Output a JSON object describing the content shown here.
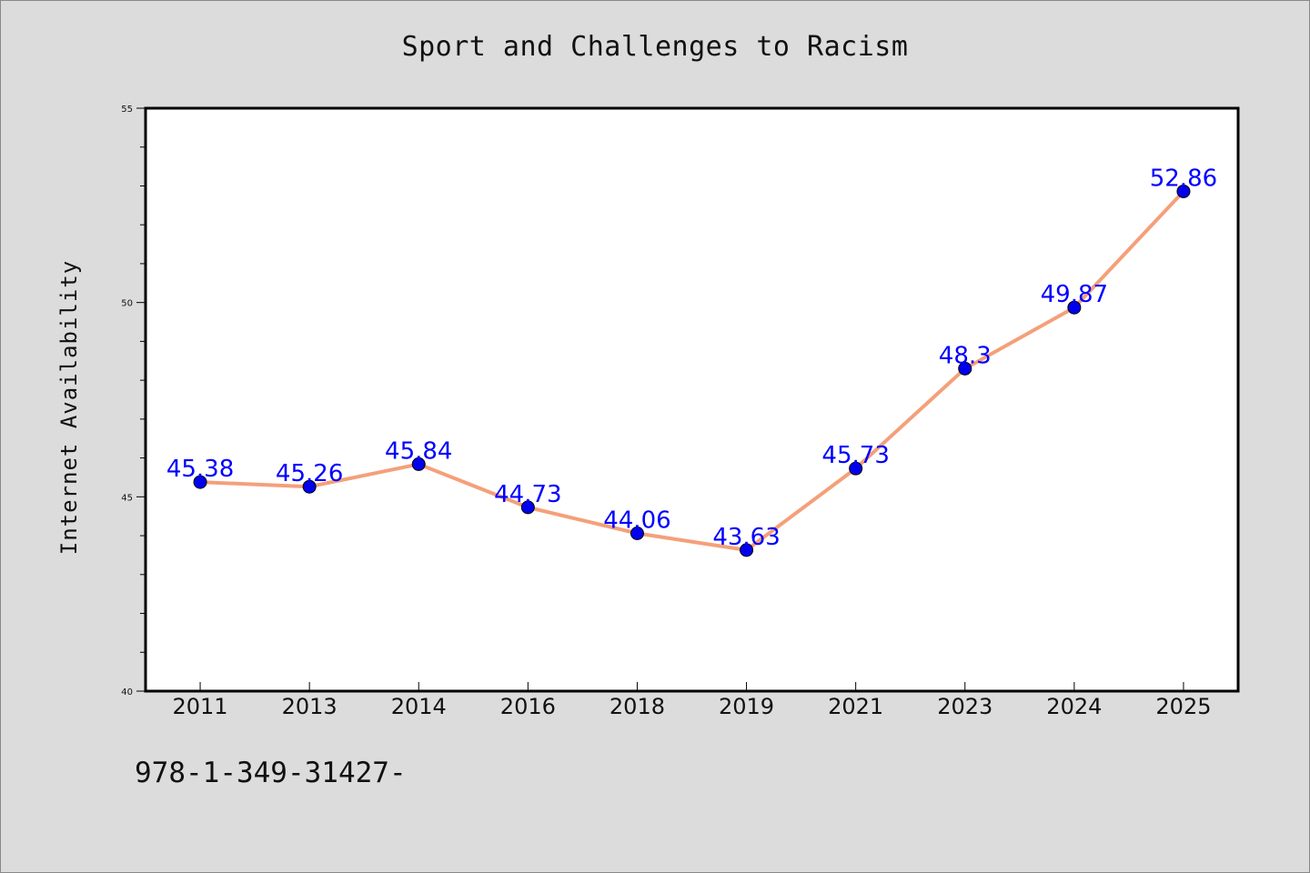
{
  "chart_data": {
    "type": "line",
    "title": "Sport and Challenges to Racism",
    "xlabel": "",
    "ylabel": "Internet Availability",
    "categories": [
      "2011",
      "2013",
      "2014",
      "2016",
      "2018",
      "2019",
      "2021",
      "2023",
      "2024",
      "2025"
    ],
    "series": [
      {
        "values": [
          45.38,
          45.26,
          45.84,
          44.73,
          44.06,
          43.63,
          45.73,
          48.3,
          49.87,
          52.86
        ],
        "labels": [
          "45.38",
          "45.26",
          "45.84",
          "44.73",
          "44.06",
          "43.63",
          "45.73",
          "48.3",
          "49.87",
          "52.86"
        ]
      }
    ],
    "ylim": [
      40,
      55
    ],
    "yticks": [
      "40",
      "45",
      "50",
      "55"
    ],
    "grid": false,
    "legend": "none",
    "colors": {
      "line": "#f4a07a",
      "marker": "#0000ee",
      "data_label": "#0000ff",
      "plot_background": "#ffffff",
      "page_background": "#dcdcdc"
    }
  },
  "footer": {
    "text": "978-1-349-31427-"
  }
}
